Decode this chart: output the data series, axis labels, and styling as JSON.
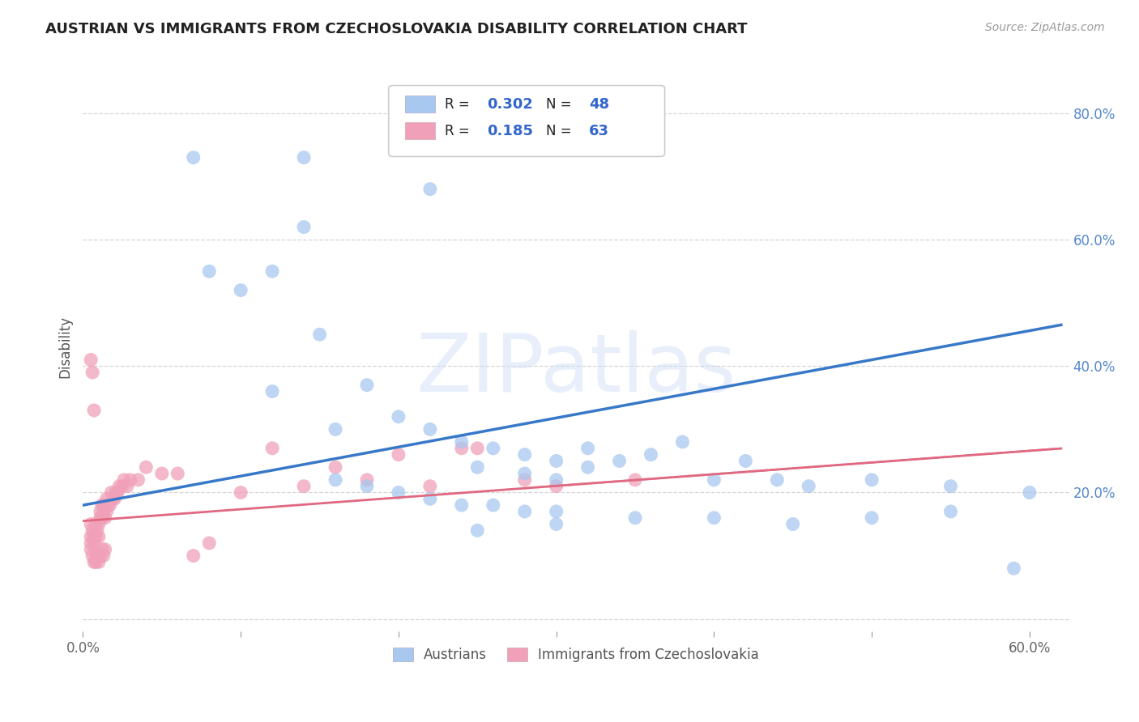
{
  "title": "AUSTRIAN VS IMMIGRANTS FROM CZECHOSLOVAKIA DISABILITY CORRELATION CHART",
  "source": "Source: ZipAtlas.com",
  "ylabel": "Disability",
  "xlabel": "",
  "xlim": [
    0.0,
    0.625
  ],
  "ylim": [
    -0.02,
    0.88
  ],
  "ytick_positions": [
    0.0,
    0.2,
    0.4,
    0.6,
    0.8
  ],
  "ytick_labels": [
    "",
    "20.0%",
    "40.0%",
    "60.0%",
    "80.0%"
  ],
  "xtick_positions": [
    0.0,
    0.1,
    0.2,
    0.3,
    0.4,
    0.5,
    0.6
  ],
  "xtick_labels": [
    "0.0%",
    "",
    "",
    "",
    "",
    "",
    "60.0%"
  ],
  "background_color": "#ffffff",
  "grid_color": "#cccccc",
  "watermark": "ZIPatlas",
  "legend_r1": "0.302",
  "legend_n1": "48",
  "legend_r2": "0.185",
  "legend_n2": "63",
  "austrians_color": "#a8c8f0",
  "immigrants_color": "#f0a0b8",
  "line1_color": "#3878c8",
  "line2_color": "#e06880",
  "line1_intercept": 0.18,
  "line1_slope": 0.46,
  "line2_intercept": 0.155,
  "line2_slope": 0.185,
  "austrians_x": [
    0.07,
    0.14,
    0.22,
    0.14,
    0.08,
    0.1,
    0.12,
    0.15,
    0.18,
    0.2,
    0.22,
    0.12,
    0.16,
    0.24,
    0.26,
    0.28,
    0.3,
    0.32,
    0.34,
    0.36,
    0.38,
    0.4,
    0.42,
    0.44,
    0.46,
    0.5,
    0.55,
    0.59,
    0.25,
    0.28,
    0.3,
    0.32,
    0.16,
    0.18,
    0.2,
    0.22,
    0.24,
    0.26,
    0.28,
    0.3,
    0.35,
    0.4,
    0.45,
    0.5,
    0.55,
    0.6,
    0.25,
    0.3
  ],
  "austrians_y": [
    0.73,
    0.73,
    0.68,
    0.62,
    0.55,
    0.52,
    0.55,
    0.45,
    0.37,
    0.32,
    0.3,
    0.36,
    0.3,
    0.28,
    0.27,
    0.26,
    0.25,
    0.27,
    0.25,
    0.26,
    0.28,
    0.22,
    0.25,
    0.22,
    0.21,
    0.22,
    0.21,
    0.08,
    0.24,
    0.23,
    0.22,
    0.24,
    0.22,
    0.21,
    0.2,
    0.19,
    0.18,
    0.18,
    0.17,
    0.17,
    0.16,
    0.16,
    0.15,
    0.16,
    0.17,
    0.2,
    0.14,
    0.15
  ],
  "immigrants_x": [
    0.005,
    0.005,
    0.005,
    0.006,
    0.007,
    0.007,
    0.008,
    0.008,
    0.009,
    0.01,
    0.01,
    0.011,
    0.011,
    0.012,
    0.012,
    0.013,
    0.013,
    0.014,
    0.015,
    0.015,
    0.016,
    0.017,
    0.018,
    0.019,
    0.02,
    0.021,
    0.022,
    0.023,
    0.025,
    0.026,
    0.028,
    0.03,
    0.035,
    0.04,
    0.05,
    0.06,
    0.07,
    0.08,
    0.1,
    0.12,
    0.14,
    0.16,
    0.18,
    0.2,
    0.22,
    0.24,
    0.25,
    0.28,
    0.3,
    0.35,
    0.005,
    0.006,
    0.007,
    0.005,
    0.006,
    0.007,
    0.008,
    0.009,
    0.01,
    0.011,
    0.012,
    0.013,
    0.014
  ],
  "immigrants_y": [
    0.15,
    0.13,
    0.12,
    0.14,
    0.13,
    0.12,
    0.13,
    0.15,
    0.14,
    0.13,
    0.15,
    0.16,
    0.17,
    0.16,
    0.18,
    0.17,
    0.18,
    0.16,
    0.17,
    0.19,
    0.18,
    0.18,
    0.2,
    0.19,
    0.19,
    0.2,
    0.2,
    0.21,
    0.21,
    0.22,
    0.21,
    0.22,
    0.22,
    0.24,
    0.23,
    0.23,
    0.1,
    0.12,
    0.2,
    0.27,
    0.21,
    0.24,
    0.22,
    0.26,
    0.21,
    0.27,
    0.27,
    0.22,
    0.21,
    0.22,
    0.41,
    0.39,
    0.33,
    0.11,
    0.1,
    0.09,
    0.09,
    0.1,
    0.09,
    0.1,
    0.11,
    0.1,
    0.11
  ]
}
